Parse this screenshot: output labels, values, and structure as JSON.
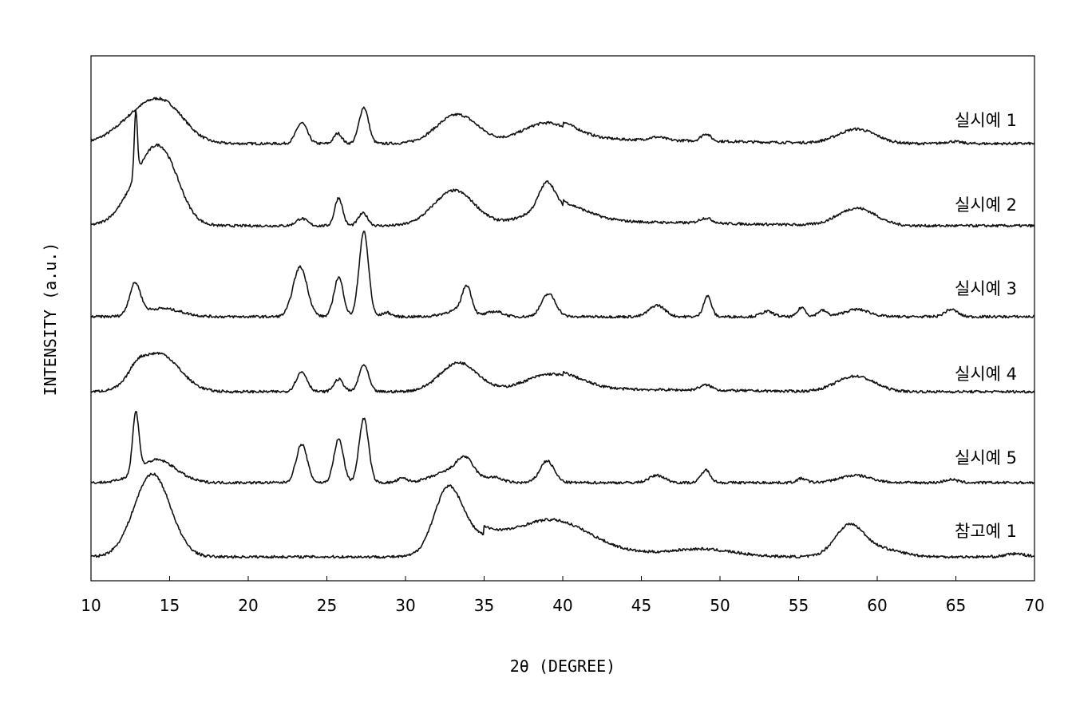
{
  "chart_data": {
    "type": "line",
    "title": "",
    "xlabel": "2θ (DEGREE)",
    "ylabel": "INTENSITY (a.u.)",
    "xlim": [
      10,
      70
    ],
    "xticks": [
      10,
      15,
      20,
      25,
      30,
      35,
      40,
      45,
      50,
      55,
      60,
      65,
      70
    ],
    "y_ticks_shown": false,
    "grid": false,
    "legend": "labels at right end of each trace",
    "stacked_offset": true,
    "series": [
      {
        "name": "실시예 1",
        "baseline": 1.0,
        "peaks": [
          {
            "x": 13.5,
            "h": 0.32,
            "w": 1.6
          },
          {
            "x": 15.0,
            "h": 0.18,
            "w": 1.2
          },
          {
            "x": 23.4,
            "h": 0.2,
            "w": 0.35
          },
          {
            "x": 25.7,
            "h": 0.1,
            "w": 0.25
          },
          {
            "x": 27.35,
            "h": 0.35,
            "w": 0.3
          },
          {
            "x": 33.3,
            "h": 0.28,
            "w": 1.3
          },
          {
            "x": 39.0,
            "h": 0.2,
            "w": 1.6
          },
          {
            "x": 46.0,
            "h": 0.03,
            "w": 0.5
          },
          {
            "x": 49.1,
            "h": 0.07,
            "w": 0.3
          },
          {
            "x": 58.7,
            "h": 0.14,
            "w": 1.2
          },
          {
            "x": 64.8,
            "h": 0.02,
            "w": 0.5
          }
        ],
        "tail": [
          {
            "x0": 40,
            "x1": 58,
            "a": 0.05
          }
        ]
      },
      {
        "name": "실시예 2",
        "baseline": 1.0,
        "peaks": [
          {
            "x": 12.85,
            "h": 0.62,
            "w": 0.1
          },
          {
            "x": 13.7,
            "h": 0.55,
            "w": 1.3
          },
          {
            "x": 14.8,
            "h": 0.32,
            "w": 1.0
          },
          {
            "x": 23.4,
            "h": 0.07,
            "w": 0.35
          },
          {
            "x": 25.75,
            "h": 0.27,
            "w": 0.25
          },
          {
            "x": 27.3,
            "h": 0.12,
            "w": 0.3
          },
          {
            "x": 33.1,
            "h": 0.34,
            "w": 1.3
          },
          {
            "x": 39.0,
            "h": 0.25,
            "w": 0.5
          },
          {
            "x": 39.5,
            "h": 0.18,
            "w": 1.8
          },
          {
            "x": 49.1,
            "h": 0.05,
            "w": 0.4
          },
          {
            "x": 58.7,
            "h": 0.17,
            "w": 1.2
          }
        ],
        "tail": [
          {
            "x0": 40,
            "x1": 58,
            "a": 0.05
          }
        ]
      },
      {
        "name": "실시예 3",
        "baseline": 1.0,
        "peaks": [
          {
            "x": 12.8,
            "h": 0.3,
            "w": 0.35
          },
          {
            "x": 14.5,
            "h": 0.08,
            "w": 1.2
          },
          {
            "x": 23.3,
            "h": 0.48,
            "w": 0.45
          },
          {
            "x": 25.75,
            "h": 0.38,
            "w": 0.3
          },
          {
            "x": 27.35,
            "h": 0.82,
            "w": 0.3
          },
          {
            "x": 28.8,
            "h": 0.04,
            "w": 0.3
          },
          {
            "x": 33.9,
            "h": 0.26,
            "w": 0.3
          },
          {
            "x": 33.3,
            "h": 0.06,
            "w": 0.8
          },
          {
            "x": 35.7,
            "h": 0.05,
            "w": 0.5
          },
          {
            "x": 39.1,
            "h": 0.22,
            "w": 0.45
          },
          {
            "x": 46.0,
            "h": 0.11,
            "w": 0.5
          },
          {
            "x": 49.2,
            "h": 0.2,
            "w": 0.25
          },
          {
            "x": 53.0,
            "h": 0.05,
            "w": 0.4
          },
          {
            "x": 55.2,
            "h": 0.09,
            "w": 0.25
          },
          {
            "x": 56.5,
            "h": 0.06,
            "w": 0.3
          },
          {
            "x": 58.7,
            "h": 0.07,
            "w": 0.8
          },
          {
            "x": 64.7,
            "h": 0.07,
            "w": 0.4
          }
        ],
        "tail": []
      },
      {
        "name": "실시예 4",
        "baseline": 1.0,
        "peaks": [
          {
            "x": 12.9,
            "h": 0.1,
            "w": 0.5
          },
          {
            "x": 14.3,
            "h": 0.37,
            "w": 1.3
          },
          {
            "x": 23.4,
            "h": 0.19,
            "w": 0.35
          },
          {
            "x": 25.75,
            "h": 0.12,
            "w": 0.3
          },
          {
            "x": 27.35,
            "h": 0.26,
            "w": 0.3
          },
          {
            "x": 33.4,
            "h": 0.28,
            "w": 1.2
          },
          {
            "x": 39.3,
            "h": 0.17,
            "w": 1.7
          },
          {
            "x": 49.1,
            "h": 0.05,
            "w": 0.4
          },
          {
            "x": 58.6,
            "h": 0.15,
            "w": 1.2
          }
        ],
        "tail": [
          {
            "x0": 40,
            "x1": 57,
            "a": 0.03
          }
        ]
      },
      {
        "name": "실시예 5",
        "baseline": 1.0,
        "peaks": [
          {
            "x": 12.85,
            "h": 0.57,
            "w": 0.2
          },
          {
            "x": 14.2,
            "h": 0.22,
            "w": 1.2
          },
          {
            "x": 23.4,
            "h": 0.37,
            "w": 0.35
          },
          {
            "x": 25.75,
            "h": 0.42,
            "w": 0.3
          },
          {
            "x": 27.35,
            "h": 0.62,
            "w": 0.3
          },
          {
            "x": 29.8,
            "h": 0.04,
            "w": 0.3
          },
          {
            "x": 33.8,
            "h": 0.15,
            "w": 0.5
          },
          {
            "x": 33.1,
            "h": 0.12,
            "w": 1.2
          },
          {
            "x": 35.7,
            "h": 0.04,
            "w": 0.5
          },
          {
            "x": 39.0,
            "h": 0.21,
            "w": 0.45
          },
          {
            "x": 46.0,
            "h": 0.07,
            "w": 0.5
          },
          {
            "x": 49.1,
            "h": 0.12,
            "w": 0.3
          },
          {
            "x": 55.2,
            "h": 0.04,
            "w": 0.3
          },
          {
            "x": 58.6,
            "h": 0.07,
            "w": 1.0
          },
          {
            "x": 64.7,
            "h": 0.03,
            "w": 0.4
          }
        ],
        "tail": []
      },
      {
        "name": "참고예 1",
        "baseline": 1.0,
        "peaks": [
          {
            "x": 13.9,
            "h": 0.8,
            "w": 1.15
          },
          {
            "x": 32.7,
            "h": 0.62,
            "w": 0.9
          },
          {
            "x": 34.5,
            "h": 0.14,
            "w": 1.3
          },
          {
            "x": 39.3,
            "h": 0.3,
            "w": 2.4
          },
          {
            "x": 49.0,
            "h": 0.07,
            "w": 2.0
          },
          {
            "x": 58.2,
            "h": 0.28,
            "w": 0.9
          },
          {
            "x": 60.0,
            "h": 0.08,
            "w": 1.4
          },
          {
            "x": 68.8,
            "h": 0.03,
            "w": 0.6
          }
        ],
        "tail": [
          {
            "x0": 35,
            "x1": 50,
            "a": 0.08
          }
        ]
      }
    ]
  }
}
